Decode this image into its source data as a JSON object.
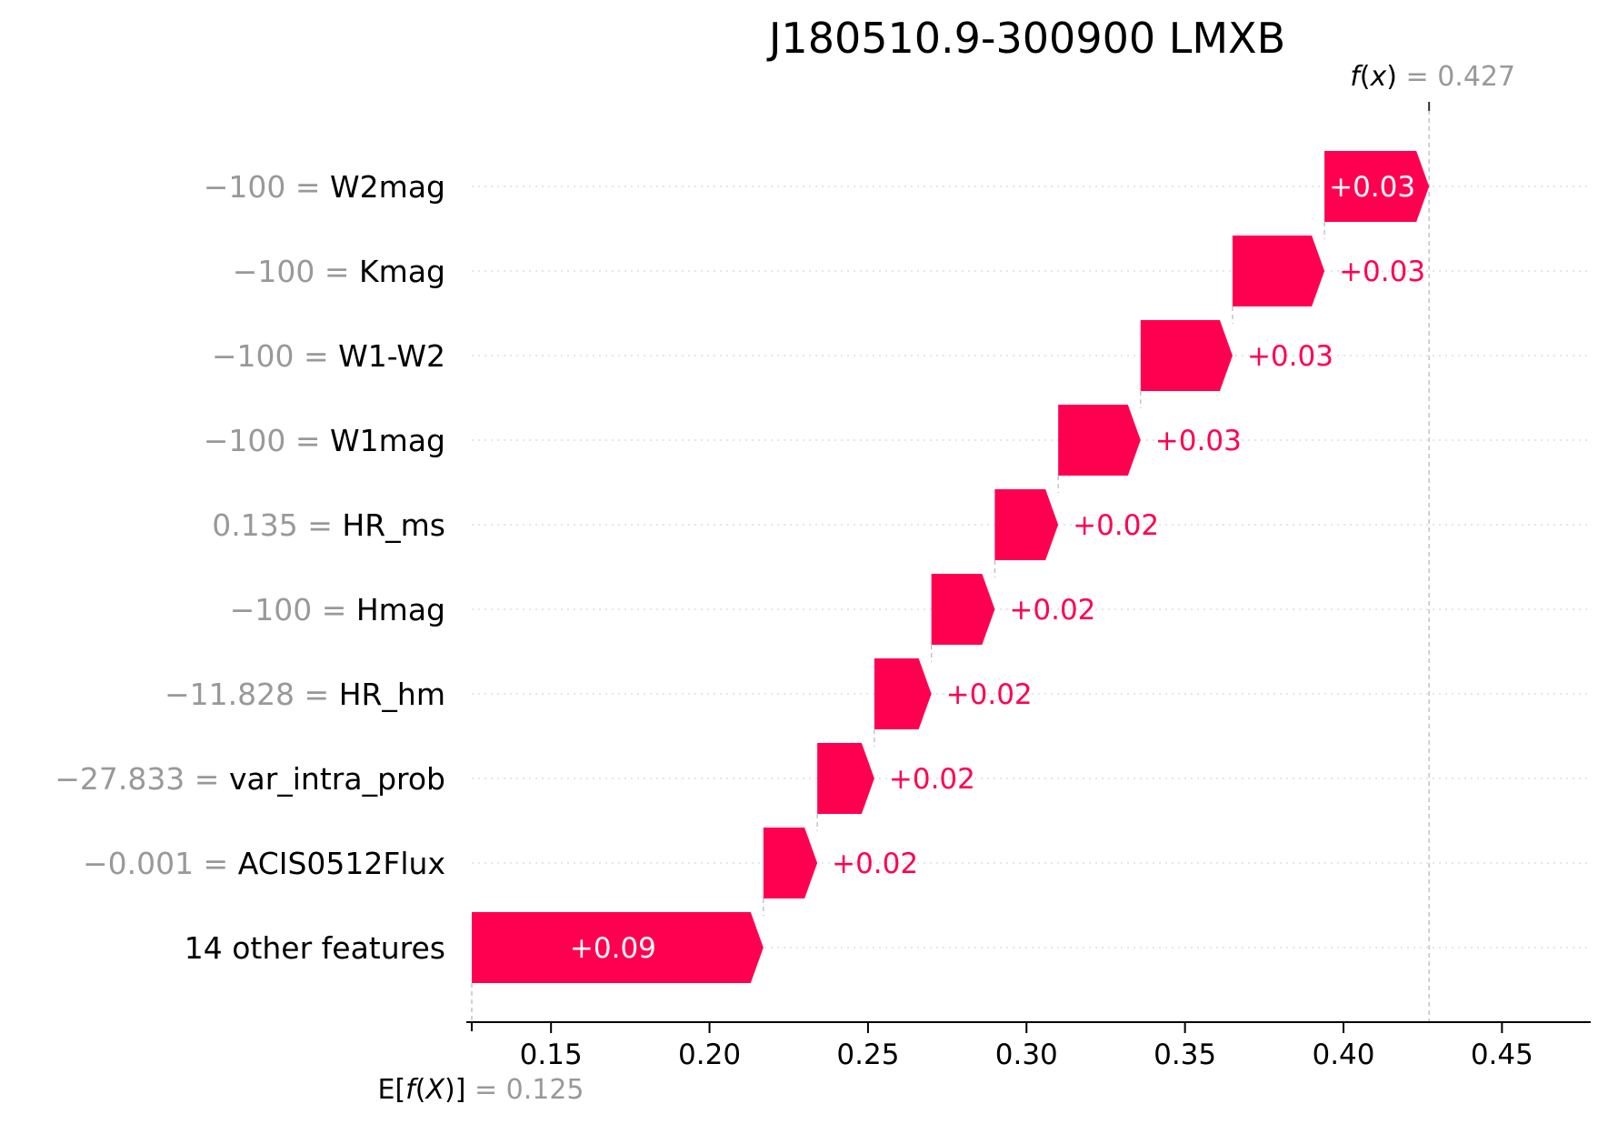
{
  "chart_data": {
    "type": "bar",
    "subtype": "waterfall",
    "title": "J180510.9-300900 LMXB",
    "base_value": 0.125,
    "base_label_name": "E[f(X)]",
    "base_label_value": "0.125",
    "output_value": 0.427,
    "output_label_name": "f(x)",
    "output_label_value": "0.427",
    "xlim": [
      0.125,
      0.478
    ],
    "xticks": [
      0.15,
      0.2,
      0.25,
      0.3,
      0.35,
      0.4,
      0.45
    ],
    "xtick_labels": [
      "0.15",
      "0.20",
      "0.25",
      "0.30",
      "0.35",
      "0.40",
      "0.45"
    ],
    "grid": "horizontal dotted",
    "features": [
      {
        "value": "−100",
        "name": "W2mag",
        "start": 0.394,
        "end": 0.427,
        "label": "+0.03"
      },
      {
        "value": "−100",
        "name": "Kmag",
        "start": 0.365,
        "end": 0.394,
        "label": "+0.03"
      },
      {
        "value": "−100",
        "name": "W1-W2",
        "start": 0.336,
        "end": 0.365,
        "label": "+0.03"
      },
      {
        "value": "−100",
        "name": "W1mag",
        "start": 0.31,
        "end": 0.336,
        "label": "+0.03"
      },
      {
        "value": "0.135",
        "name": "HR_ms",
        "start": 0.29,
        "end": 0.31,
        "label": "+0.02"
      },
      {
        "value": "−100",
        "name": "Hmag",
        "start": 0.27,
        "end": 0.29,
        "label": "+0.02"
      },
      {
        "value": "−11.828",
        "name": "HR_hm",
        "start": 0.252,
        "end": 0.27,
        "label": "+0.02"
      },
      {
        "value": "−27.833",
        "name": "var_intra_prob",
        "start": 0.234,
        "end": 0.252,
        "label": "+0.02"
      },
      {
        "value": "−0.001",
        "name": "ACIS0512Flux",
        "start": 0.217,
        "end": 0.234,
        "label": "+0.02"
      },
      {
        "value": "",
        "name": "14 other features",
        "start": 0.125,
        "end": 0.217,
        "label": "+0.09"
      }
    ],
    "colors": {
      "positive": "#ff0051",
      "inside_label": "#ffffff",
      "value_text": "#999999",
      "connector": "#bbbbbb",
      "gridline": "#dddddd"
    }
  }
}
